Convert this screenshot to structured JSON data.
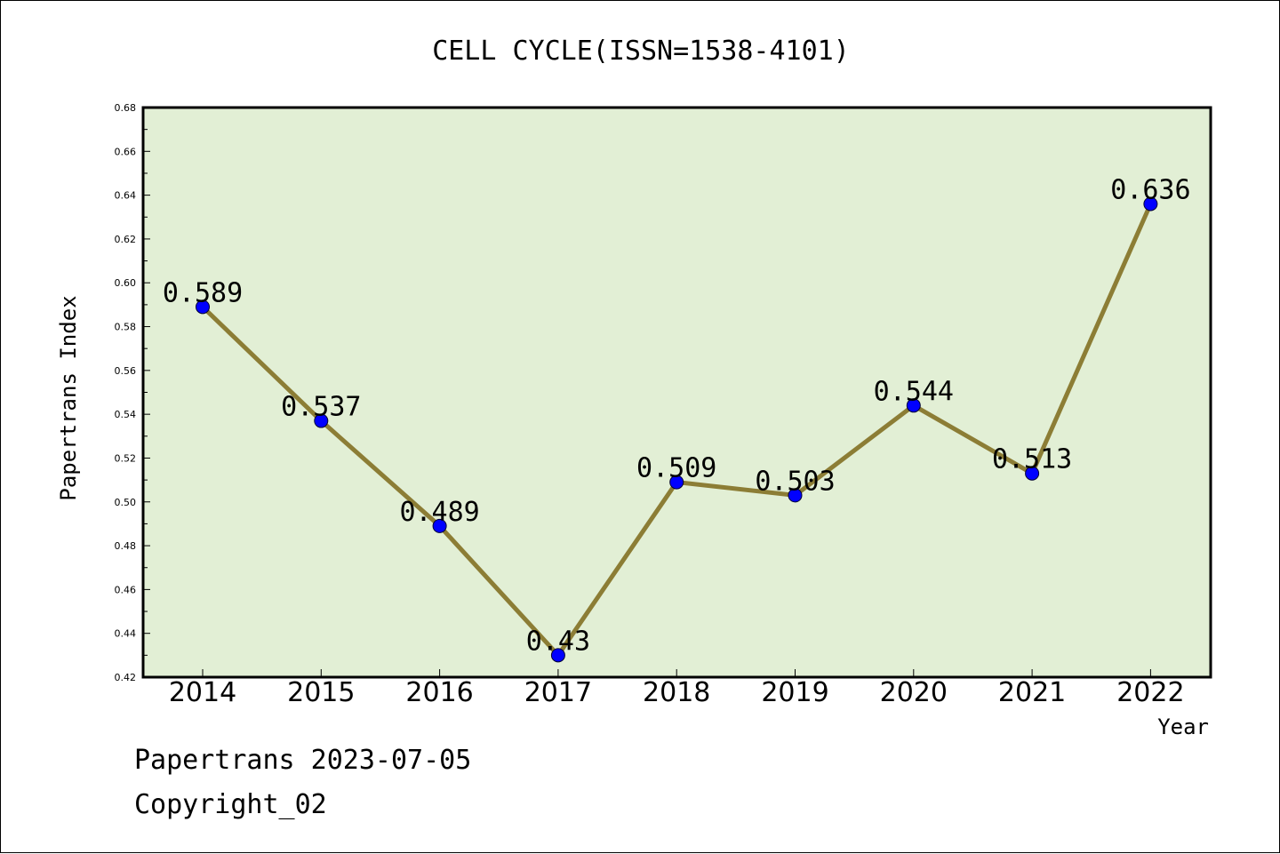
{
  "chart_data": {
    "type": "line",
    "title": "CELL CYCLE(ISSN=1538-4101)",
    "xlabel": "Year",
    "ylabel": "Papertrans Index",
    "categories": [
      "2014",
      "2015",
      "2016",
      "2017",
      "2018",
      "2019",
      "2020",
      "2021",
      "2022"
    ],
    "values": [
      0.589,
      0.537,
      0.489,
      0.43,
      0.509,
      0.503,
      0.544,
      0.513,
      0.636
    ],
    "data_labels": [
      "0.589",
      "0.537",
      "0.489",
      "0.43",
      "0.509",
      "0.503",
      "0.544",
      "0.513",
      "0.636"
    ],
    "ylim": [
      0.42,
      0.68
    ],
    "yticks": [
      "0.42",
      "0.44",
      "0.46",
      "0.48",
      "0.50",
      "0.52",
      "0.54",
      "0.56",
      "0.58",
      "0.60",
      "0.62",
      "0.64",
      "0.66",
      "0.68"
    ],
    "grid": false,
    "colors": {
      "plot_background": "#e2efd5",
      "line": "#8c7d35",
      "marker": "#0000ff"
    }
  },
  "footer": {
    "line1": "Papertrans 2023-07-05",
    "line2": "Copyright_02"
  }
}
